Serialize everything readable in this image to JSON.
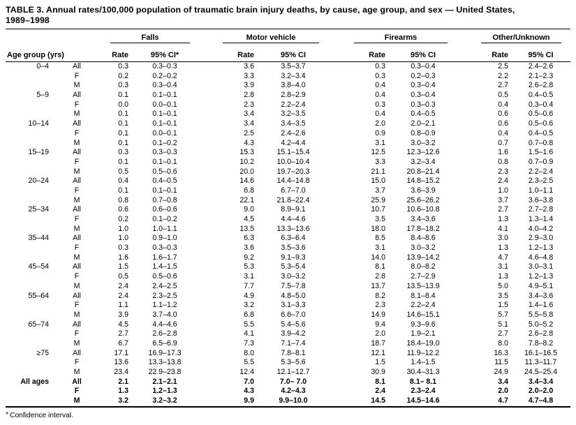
{
  "title": {
    "line1": "TABLE 3. Annual rates/100,000 population of traumatic brain injury deaths, by cause, age group, and sex — United States,",
    "line2": "1989–1998"
  },
  "colors": {
    "text": "#000000",
    "background": "#ffffff",
    "rule": "#000000"
  },
  "table": {
    "age_group_header": "Age group (yrs)",
    "groups": [
      {
        "label": "Falls",
        "rate_header": "Rate",
        "ci_header": "95% CI*"
      },
      {
        "label": "Motor vehicle",
        "rate_header": "Rate",
        "ci_header": "95% CI"
      },
      {
        "label": "Firearms",
        "rate_header": "Rate",
        "ci_header": "95% CI"
      },
      {
        "label": "Other/Unknown",
        "rate_header": "Rate",
        "ci_header": "95% CI"
      }
    ],
    "rows": [
      {
        "age": "0–4",
        "sex": "All",
        "bold": false,
        "values": [
          "0.3",
          "0.3–0.3",
          "3.6",
          "3.5–3.7",
          "0.3",
          "0.3–0.4",
          "2.5",
          "2.4–2.6"
        ]
      },
      {
        "age": "",
        "sex": "F",
        "bold": false,
        "values": [
          "0.2",
          "0.2–0.2",
          "3.3",
          "3.2–3.4",
          "0.3",
          "0.2–0.3",
          "2.2",
          "2.1–2.3"
        ]
      },
      {
        "age": "",
        "sex": "M",
        "bold": false,
        "values": [
          "0.3",
          "0.3–0.4",
          "3.9",
          "3.8–4.0",
          "0.4",
          "0.3–0.4",
          "2.7",
          "2.6–2.8"
        ]
      },
      {
        "age": "5–9",
        "sex": "All",
        "bold": false,
        "values": [
          "0.1",
          "0.1–0.1",
          "2.8",
          "2.8–2.9",
          "0.4",
          "0.3–0.4",
          "0.5",
          "0.4–0.5"
        ]
      },
      {
        "age": "",
        "sex": "F",
        "bold": false,
        "values": [
          "0.0",
          "0.0–0.1",
          "2.3",
          "2.2–2.4",
          "0.3",
          "0.3–0.3",
          "0.4",
          "0.3–0.4"
        ]
      },
      {
        "age": "",
        "sex": "M",
        "bold": false,
        "values": [
          "0.1",
          "0.1–0.1",
          "3.4",
          "3.2–3.5",
          "0.4",
          "0.4–0.5",
          "0.6",
          "0.5–0.6"
        ]
      },
      {
        "age": "10–14",
        "sex": "All",
        "bold": false,
        "values": [
          "0.1",
          "0.1–0.1",
          "3.4",
          "3.4–3.5",
          "2.0",
          "2.0–2.1",
          "0.6",
          "0.5–0.6"
        ]
      },
      {
        "age": "",
        "sex": "F",
        "bold": false,
        "values": [
          "0.1",
          "0.0–0.1",
          "2.5",
          "2.4–2.6",
          "0.9",
          "0.8–0.9",
          "0.4",
          "0.4–0.5"
        ]
      },
      {
        "age": "",
        "sex": "M",
        "bold": false,
        "values": [
          "0.1",
          "0.1–0.2",
          "4.3",
          "4.2–4.4",
          "3.1",
          "3.0–3.2",
          "0.7",
          "0.7–0.8"
        ]
      },
      {
        "age": "15–19",
        "sex": "All",
        "bold": false,
        "values": [
          "0.3",
          "0.3–0.3",
          "15.3",
          "15.1–15.4",
          "12.5",
          "12.3–12.6",
          "1.6",
          "1.5–1.6"
        ]
      },
      {
        "age": "",
        "sex": "F",
        "bold": false,
        "values": [
          "0.1",
          "0.1–0.1",
          "10.2",
          "10.0–10.4",
          "3.3",
          "3.2–3.4",
          "0.8",
          "0.7–0.9"
        ]
      },
      {
        "age": "",
        "sex": "M",
        "bold": false,
        "values": [
          "0.5",
          "0.5–0.6",
          "20.0",
          "19.7–20.3",
          "21.1",
          "20.8–21.4",
          "2.3",
          "2.2–2.4"
        ]
      },
      {
        "age": "20–24",
        "sex": "All",
        "bold": false,
        "values": [
          "0.4",
          "0.4–0.5",
          "14.6",
          "14.4–14.8",
          "15.0",
          "14.8–15.2",
          "2.4",
          "2.3–2.5"
        ]
      },
      {
        "age": "",
        "sex": "F",
        "bold": false,
        "values": [
          "0.1",
          "0.1–0.1",
          "6.8",
          "6.7–7.0",
          "3.7",
          "3.6–3.9",
          "1.0",
          "1.0–1.1"
        ]
      },
      {
        "age": "",
        "sex": "M",
        "bold": false,
        "values": [
          "0.8",
          "0.7–0.8",
          "22.1",
          "21.8–22.4",
          "25.9",
          "25.6–26.2",
          "3.7",
          "3.6–3.8"
        ]
      },
      {
        "age": "25–34",
        "sex": "All",
        "bold": false,
        "values": [
          "0.6",
          "0.6–0.6",
          "9.0",
          "8.9–9.1",
          "10.7",
          "10.6–10.8",
          "2.7",
          "2.7–2.8"
        ]
      },
      {
        "age": "",
        "sex": "F",
        "bold": false,
        "values": [
          "0.2",
          "0.1–0.2",
          "4.5",
          "4.4–4.6",
          "3.5",
          "3.4–3.6",
          "1.3",
          "1.3–1.4"
        ]
      },
      {
        "age": "",
        "sex": "M",
        "bold": false,
        "values": [
          "1.0",
          "1.0–1.1",
          "13.5",
          "13.3–13.6",
          "18.0",
          "17.8–18.2",
          "4.1",
          "4.0–4.2"
        ]
      },
      {
        "age": "35–44",
        "sex": "All",
        "bold": false,
        "values": [
          "1.0",
          "0.9–1.0",
          "6.3",
          "6.3–6.4",
          "8.5",
          "8.4–8.6",
          "3.0",
          "2.9–3.0"
        ]
      },
      {
        "age": "",
        "sex": "F",
        "bold": false,
        "values": [
          "0.3",
          "0.3–0.3",
          "3.6",
          "3.5–3.6",
          "3.1",
          "3.0–3.2",
          "1.3",
          "1.2–1.3"
        ]
      },
      {
        "age": "",
        "sex": "M",
        "bold": false,
        "values": [
          "1.6",
          "1.6–1.7",
          "9.2",
          "9.1–9.3",
          "14.0",
          "13.9–14.2",
          "4.7",
          "4.6–4.8"
        ]
      },
      {
        "age": "45–54",
        "sex": "All",
        "bold": false,
        "values": [
          "1.5",
          "1.4–1.5",
          "5.3",
          "5.3–5.4",
          "8.1",
          "8.0–8.2",
          "3.1",
          "3.0–3.1"
        ]
      },
      {
        "age": "",
        "sex": "F",
        "bold": false,
        "values": [
          "0.5",
          "0.5–0.6",
          "3.1",
          "3.0–3.2",
          "2.8",
          "2.7–2.9",
          "1.3",
          "1.2–1.3"
        ]
      },
      {
        "age": "",
        "sex": "M",
        "bold": false,
        "values": [
          "2.4",
          "2.4–2.5",
          "7.7",
          "7.5–7.8",
          "13.7",
          "13.5–13.9",
          "5.0",
          "4.9–5.1"
        ]
      },
      {
        "age": "55–64",
        "sex": "All",
        "bold": false,
        "values": [
          "2.4",
          "2.3–2.5",
          "4.9",
          "4.8–5.0",
          "8.2",
          "8.1–8.4",
          "3.5",
          "3.4–3.6"
        ]
      },
      {
        "age": "",
        "sex": "F",
        "bold": false,
        "values": [
          "1.1",
          "1.1–1.2",
          "3.2",
          "3.1–3.3",
          "2.3",
          "2.2–2.4",
          "1.5",
          "1.4–1.6"
        ]
      },
      {
        "age": "",
        "sex": "M",
        "bold": false,
        "values": [
          "3.9",
          "3.7–4.0",
          "6.8",
          "6.6–7.0",
          "14.9",
          "14.6–15.1",
          "5.7",
          "5.5–5.8"
        ]
      },
      {
        "age": "65–74",
        "sex": "All",
        "bold": false,
        "values": [
          "4.5",
          "4.4–4.6",
          "5.5",
          "5.4–5.6",
          "9.4",
          "9.3–9.6",
          "5.1",
          "5.0–5.2"
        ]
      },
      {
        "age": "",
        "sex": "F",
        "bold": false,
        "values": [
          "2.7",
          "2.6–2.8",
          "4.1",
          "3.9–4.2",
          "2.0",
          "1.9–2.1",
          "2.7",
          "2.6–2.8"
        ]
      },
      {
        "age": "",
        "sex": "M",
        "bold": false,
        "values": [
          "6.7",
          "6.5–6.9",
          "7.3",
          "7.1–7.4",
          "18.7",
          "18.4–19.0",
          "8.0",
          "7.8–8.2"
        ]
      },
      {
        "age": "≥75",
        "sex": "All",
        "bold": false,
        "values": [
          "17.1",
          "16.9–17.3",
          "8.0",
          "7.8–8.1",
          "12.1",
          "11.9–12.2",
          "16.3",
          "16.1–16.5"
        ]
      },
      {
        "age": "",
        "sex": "F",
        "bold": false,
        "values": [
          "13.6",
          "13.3–13.8",
          "5.5",
          "5.3–5.6",
          "1.5",
          "1.4–1.5",
          "11.5",
          "11.3–11.7"
        ]
      },
      {
        "age": "",
        "sex": "M",
        "bold": false,
        "values": [
          "23.4",
          "22.9–23.8",
          "12.4",
          "12.1–12.7",
          "30.9",
          "30.4–31.3",
          "24.9",
          "24.5–25.4"
        ]
      },
      {
        "age": "All ages",
        "sex": "All",
        "bold": true,
        "values": [
          "2.1",
          "2.1–2.1",
          "7.0",
          "7.0– 7.0",
          "8.1",
          "8.1– 8.1",
          "3.4",
          "3.4–3.4"
        ]
      },
      {
        "age": "",
        "sex": "F",
        "bold": true,
        "values": [
          "1.3",
          "1.2–1.3",
          "4.3",
          "4.2–4.3",
          "2.4",
          "2.3–2.4",
          "2.0",
          "2.0–2.0"
        ]
      },
      {
        "age": "",
        "sex": "M",
        "bold": true,
        "values": [
          "3.2",
          "3.2–3.2",
          "9.9",
          "9.9–10.0",
          "14.5",
          "14.5–14.6",
          "4.7",
          "4.7–4.8"
        ]
      }
    ]
  },
  "footnote": {
    "marker": "*",
    "text": "Confidence interval."
  }
}
